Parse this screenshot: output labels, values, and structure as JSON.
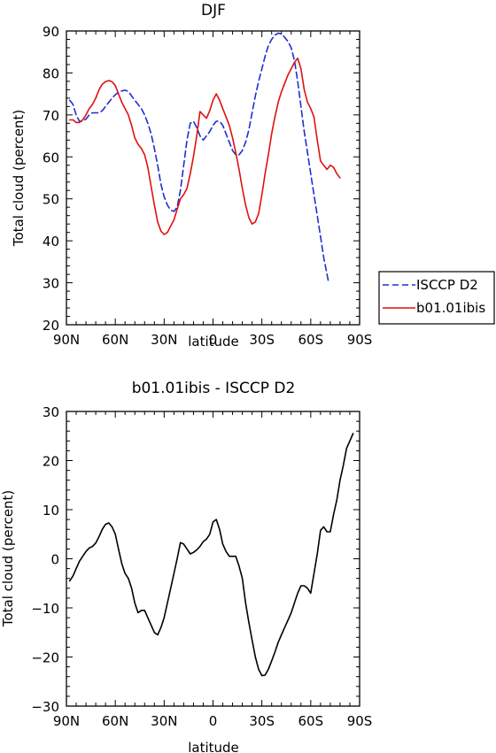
{
  "chart_data": [
    {
      "type": "line",
      "title": "DJF",
      "xlabel": "latitude",
      "ylabel": "Total cloud (percent)",
      "xlim": [
        90,
        -90
      ],
      "ylim": [
        20,
        90
      ],
      "x_ticks": [
        {
          "value": 90,
          "label": "90N"
        },
        {
          "value": 60,
          "label": "60N"
        },
        {
          "value": 30,
          "label": "30N"
        },
        {
          "value": 0,
          "label": "0"
        },
        {
          "value": -30,
          "label": "30S"
        },
        {
          "value": -60,
          "label": "60S"
        },
        {
          "value": -90,
          "label": "90S"
        }
      ],
      "y_ticks": [
        20,
        30,
        40,
        50,
        60,
        70,
        80,
        90
      ],
      "legend": "right",
      "series": [
        {
          "name": "ISCCP D2",
          "color": "#1f2fd0",
          "dash": "dashed",
          "points": [
            [
              88,
              73.5
            ],
            [
              86,
              72.5
            ],
            [
              84,
              70
            ],
            [
              82,
              68.5
            ],
            [
              80,
              68.5
            ],
            [
              78,
              69
            ],
            [
              76,
              70
            ],
            [
              74,
              70.5
            ],
            [
              72,
              70.5
            ],
            [
              70,
              70.5
            ],
            [
              68,
              71
            ],
            [
              66,
              72
            ],
            [
              64,
              73
            ],
            [
              62,
              74
            ],
            [
              60,
              74.8
            ],
            [
              58,
              75.4
            ],
            [
              56,
              75.7
            ],
            [
              54,
              75.9
            ],
            [
              52,
              75.6
            ],
            [
              50,
              74.5
            ],
            [
              48,
              73.5
            ],
            [
              46,
              72.5
            ],
            [
              44,
              71.5
            ],
            [
              42,
              70
            ],
            [
              40,
              68
            ],
            [
              38,
              65.5
            ],
            [
              36,
              62
            ],
            [
              34,
              58
            ],
            [
              32,
              53.5
            ],
            [
              30,
              50.5
            ],
            [
              28,
              48.5
            ],
            [
              26,
              47.3
            ],
            [
              24,
              47
            ],
            [
              22,
              48
            ],
            [
              20,
              52
            ],
            [
              18,
              58
            ],
            [
              16,
              64
            ],
            [
              14,
              68
            ],
            [
              12,
              68.5
            ],
            [
              10,
              67
            ],
            [
              8,
              65
            ],
            [
              6,
              64
            ],
            [
              4,
              65
            ],
            [
              2,
              66
            ],
            [
              0,
              67.5
            ],
            [
              -2,
              68.5
            ],
            [
              -4,
              68.5
            ],
            [
              -6,
              67.5
            ],
            [
              -8,
              65.5
            ],
            [
              -10,
              63.5
            ],
            [
              -12,
              61.5
            ],
            [
              -14,
              60.5
            ],
            [
              -16,
              60.5
            ],
            [
              -18,
              61.5
            ],
            [
              -20,
              63.5
            ],
            [
              -22,
              66.5
            ],
            [
              -24,
              70.5
            ],
            [
              -26,
              74.5
            ],
            [
              -28,
              78
            ],
            [
              -30,
              81
            ],
            [
              -32,
              84
            ],
            [
              -34,
              86.5
            ],
            [
              -36,
              88
            ],
            [
              -38,
              89
            ],
            [
              -40,
              89.5
            ],
            [
              -42,
              89.3
            ],
            [
              -44,
              88.5
            ],
            [
              -46,
              87.5
            ],
            [
              -48,
              86
            ],
            [
              -50,
              83
            ],
            [
              -52,
              78
            ],
            [
              -54,
              72
            ],
            [
              -56,
              66
            ],
            [
              -58,
              61
            ],
            [
              -60,
              56
            ],
            [
              -62,
              51
            ],
            [
              -64,
              46
            ],
            [
              -66,
              41
            ],
            [
              -68,
              36
            ],
            [
              -70,
              32
            ],
            [
              -71,
              30
            ]
          ]
        },
        {
          "name": "b01.01ibis",
          "color": "#e01010",
          "dash": "solid",
          "points": [
            [
              88,
              68.8
            ],
            [
              86,
              68.8
            ],
            [
              84,
              68.2
            ],
            [
              82,
              68.2
            ],
            [
              80,
              68.8
            ],
            [
              78,
              70
            ],
            [
              76,
              71.5
            ],
            [
              74,
              72.5
            ],
            [
              72,
              74
            ],
            [
              70,
              76
            ],
            [
              68,
              77.3
            ],
            [
              66,
              77.9
            ],
            [
              64,
              78.2
            ],
            [
              62,
              77.9
            ],
            [
              60,
              77
            ],
            [
              58,
              75
            ],
            [
              56,
              73
            ],
            [
              54,
              71.5
            ],
            [
              52,
              70
            ],
            [
              50,
              67.5
            ],
            [
              48,
              64.5
            ],
            [
              46,
              63
            ],
            [
              44,
              62
            ],
            [
              42,
              60.5
            ],
            [
              40,
              57.5
            ],
            [
              38,
              53
            ],
            [
              36,
              48.5
            ],
            [
              34,
              44.5
            ],
            [
              32,
              42.3
            ],
            [
              30,
              41.5
            ],
            [
              28,
              42
            ],
            [
              26,
              43.5
            ],
            [
              24,
              45
            ],
            [
              22,
              47.5
            ],
            [
              20,
              50
            ],
            [
              18,
              51
            ],
            [
              16,
              52.5
            ],
            [
              14,
              56
            ],
            [
              12,
              60
            ],
            [
              10,
              65
            ],
            [
              8,
              70.8
            ],
            [
              6,
              70
            ],
            [
              4,
              69.2
            ],
            [
              2,
              71
            ],
            [
              0,
              73.5
            ],
            [
              -2,
              75
            ],
            [
              -4,
              73.5
            ],
            [
              -6,
              71.5
            ],
            [
              -8,
              69.5
            ],
            [
              -10,
              67.5
            ],
            [
              -12,
              64.5
            ],
            [
              -14,
              61
            ],
            [
              -16,
              57
            ],
            [
              -18,
              52.5
            ],
            [
              -20,
              48.5
            ],
            [
              -22,
              45.5
            ],
            [
              -24,
              44
            ],
            [
              -26,
              44.5
            ],
            [
              -28,
              46.5
            ],
            [
              -30,
              51
            ],
            [
              -32,
              56
            ],
            [
              -34,
              60.5
            ],
            [
              -36,
              65.5
            ],
            [
              -38,
              69.5
            ],
            [
              -40,
              73
            ],
            [
              -42,
              75.5
            ],
            [
              -44,
              77.5
            ],
            [
              -46,
              79.5
            ],
            [
              -48,
              81
            ],
            [
              -50,
              82.5
            ],
            [
              -52,
              83.5
            ],
            [
              -54,
              81
            ],
            [
              -56,
              76
            ],
            [
              -58,
              73
            ],
            [
              -60,
              71.5
            ],
            [
              -62,
              69.5
            ],
            [
              -64,
              64
            ],
            [
              -66,
              59
            ],
            [
              -68,
              58
            ],
            [
              -70,
              57
            ],
            [
              -72,
              58
            ],
            [
              -74,
              57.5
            ],
            [
              -76,
              56
            ],
            [
              -78,
              55
            ]
          ]
        }
      ]
    },
    {
      "type": "line",
      "title": "b01.01ibis - ISCCP D2",
      "xlabel": "latitude",
      "ylabel": "Total cloud (percent)",
      "xlim": [
        90,
        -90
      ],
      "ylim": [
        -30,
        30
      ],
      "x_ticks": [
        {
          "value": 90,
          "label": "90N"
        },
        {
          "value": 60,
          "label": "60N"
        },
        {
          "value": 30,
          "label": "30N"
        },
        {
          "value": 0,
          "label": "0"
        },
        {
          "value": -30,
          "label": "30S"
        },
        {
          "value": -60,
          "label": "60S"
        },
        {
          "value": -90,
          "label": "90S"
        }
      ],
      "y_ticks": [
        -30,
        -20,
        -10,
        0,
        10,
        20,
        30
      ],
      "series": [
        {
          "color": "#000000",
          "dash": "solid",
          "points": [
            [
              88,
              -4.5
            ],
            [
              86,
              -3.5
            ],
            [
              84,
              -2
            ],
            [
              82,
              -0.5
            ],
            [
              80,
              0.5
            ],
            [
              78,
              1.5
            ],
            [
              76,
              2.2
            ],
            [
              74,
              2.5
            ],
            [
              72,
              3.2
            ],
            [
              70,
              4.5
            ],
            [
              68,
              6
            ],
            [
              66,
              7
            ],
            [
              64,
              7.3
            ],
            [
              62,
              6.5
            ],
            [
              60,
              5
            ],
            [
              58,
              2
            ],
            [
              56,
              -1
            ],
            [
              54,
              -3
            ],
            [
              52,
              -4
            ],
            [
              50,
              -6
            ],
            [
              48,
              -9
            ],
            [
              46,
              -11
            ],
            [
              44,
              -10.5
            ],
            [
              42,
              -10.5
            ],
            [
              40,
              -12
            ],
            [
              38,
              -13.5
            ],
            [
              36,
              -15
            ],
            [
              34,
              -15.5
            ],
            [
              32,
              -14
            ],
            [
              30,
              -12
            ],
            [
              28,
              -9
            ],
            [
              26,
              -6
            ],
            [
              24,
              -3
            ],
            [
              22,
              0
            ],
            [
              20,
              3.3
            ],
            [
              18,
              3
            ],
            [
              16,
              2
            ],
            [
              14,
              1
            ],
            [
              12,
              1.3
            ],
            [
              10,
              1.8
            ],
            [
              8,
              2.5
            ],
            [
              6,
              3.5
            ],
            [
              4,
              4
            ],
            [
              2,
              5
            ],
            [
              0,
              7.5
            ],
            [
              -2,
              8
            ],
            [
              -4,
              6
            ],
            [
              -6,
              3
            ],
            [
              -8,
              1.5
            ],
            [
              -10,
              0.5
            ],
            [
              -12,
              0.5
            ],
            [
              -14,
              0.5
            ],
            [
              -16,
              -1.5
            ],
            [
              -18,
              -4
            ],
            [
              -20,
              -9
            ],
            [
              -22,
              -13
            ],
            [
              -24,
              -16.5
            ],
            [
              -26,
              -20
            ],
            [
              -28,
              -22.5
            ],
            [
              -30,
              -23.8
            ],
            [
              -32,
              -23.7
            ],
            [
              -34,
              -22.5
            ],
            [
              -36,
              -20.8
            ],
            [
              -38,
              -19
            ],
            [
              -40,
              -17
            ],
            [
              -42,
              -15.5
            ],
            [
              -44,
              -14
            ],
            [
              -46,
              -12.5
            ],
            [
              -48,
              -11
            ],
            [
              -50,
              -9
            ],
            [
              -52,
              -7
            ],
            [
              -54,
              -5.5
            ],
            [
              -56,
              -5.5
            ],
            [
              -58,
              -6
            ],
            [
              -60,
              -7
            ],
            [
              -62,
              -3
            ],
            [
              -64,
              1
            ],
            [
              -66,
              5.8
            ],
            [
              -68,
              6.5
            ],
            [
              -70,
              5.5
            ],
            [
              -72,
              5.5
            ],
            [
              -74,
              9
            ],
            [
              -76,
              12
            ],
            [
              -78,
              16
            ],
            [
              -80,
              19
            ],
            [
              -82,
              22.5
            ],
            [
              -84,
              24
            ],
            [
              -86,
              25.5
            ]
          ]
        }
      ]
    }
  ]
}
